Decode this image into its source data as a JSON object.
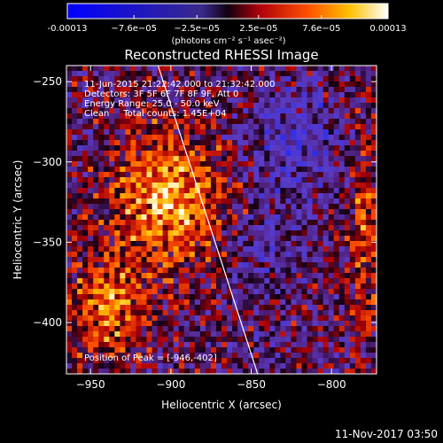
{
  "chart_data": {
    "type": "heatmap",
    "title": "Reconstructed RHESSI Image",
    "xlabel": "Heliocentric X (arcsec)",
    "ylabel": "Heliocentric Y (arcsec)",
    "xlim": [
      -965,
      -772
    ],
    "ylim": [
      -432,
      -240
    ],
    "xticks": [
      -950,
      -900,
      -850,
      -800
    ],
    "yticks": [
      -250,
      -300,
      -350,
      -400
    ],
    "colorbar": {
      "min": -0.00013,
      "max": 0.00013,
      "tick_labels": [
        "-0.00013",
        "−7.6e−05",
        "−2.5e−05",
        "2.5e−05",
        "7.6e−05",
        "0.00013"
      ],
      "tick_values": [
        -0.00013,
        -7.6e-05,
        -2.5e-05,
        2.5e-05,
        7.6e-05,
        0.00013
      ],
      "unit_label": "(photons cm⁻² s⁻¹ asec⁻²)"
    },
    "annotations": [
      "11-Jun-2015 21:22:42.000 to 21:32:42.000",
      "Detectors: 3F 5F 6F 7F 8F 9F, Att 0",
      "Energy Range: 25.0 - 50.0 keV",
      "Clean     Total counts: 1.45E+04"
    ],
    "peak_label": "Position of Peak = [-946,-402]",
    "limb_line": {
      "x": [
        -908,
        -846
      ],
      "y": [
        -240,
        -432
      ]
    },
    "footer": "11-Nov-2017 03:50"
  }
}
